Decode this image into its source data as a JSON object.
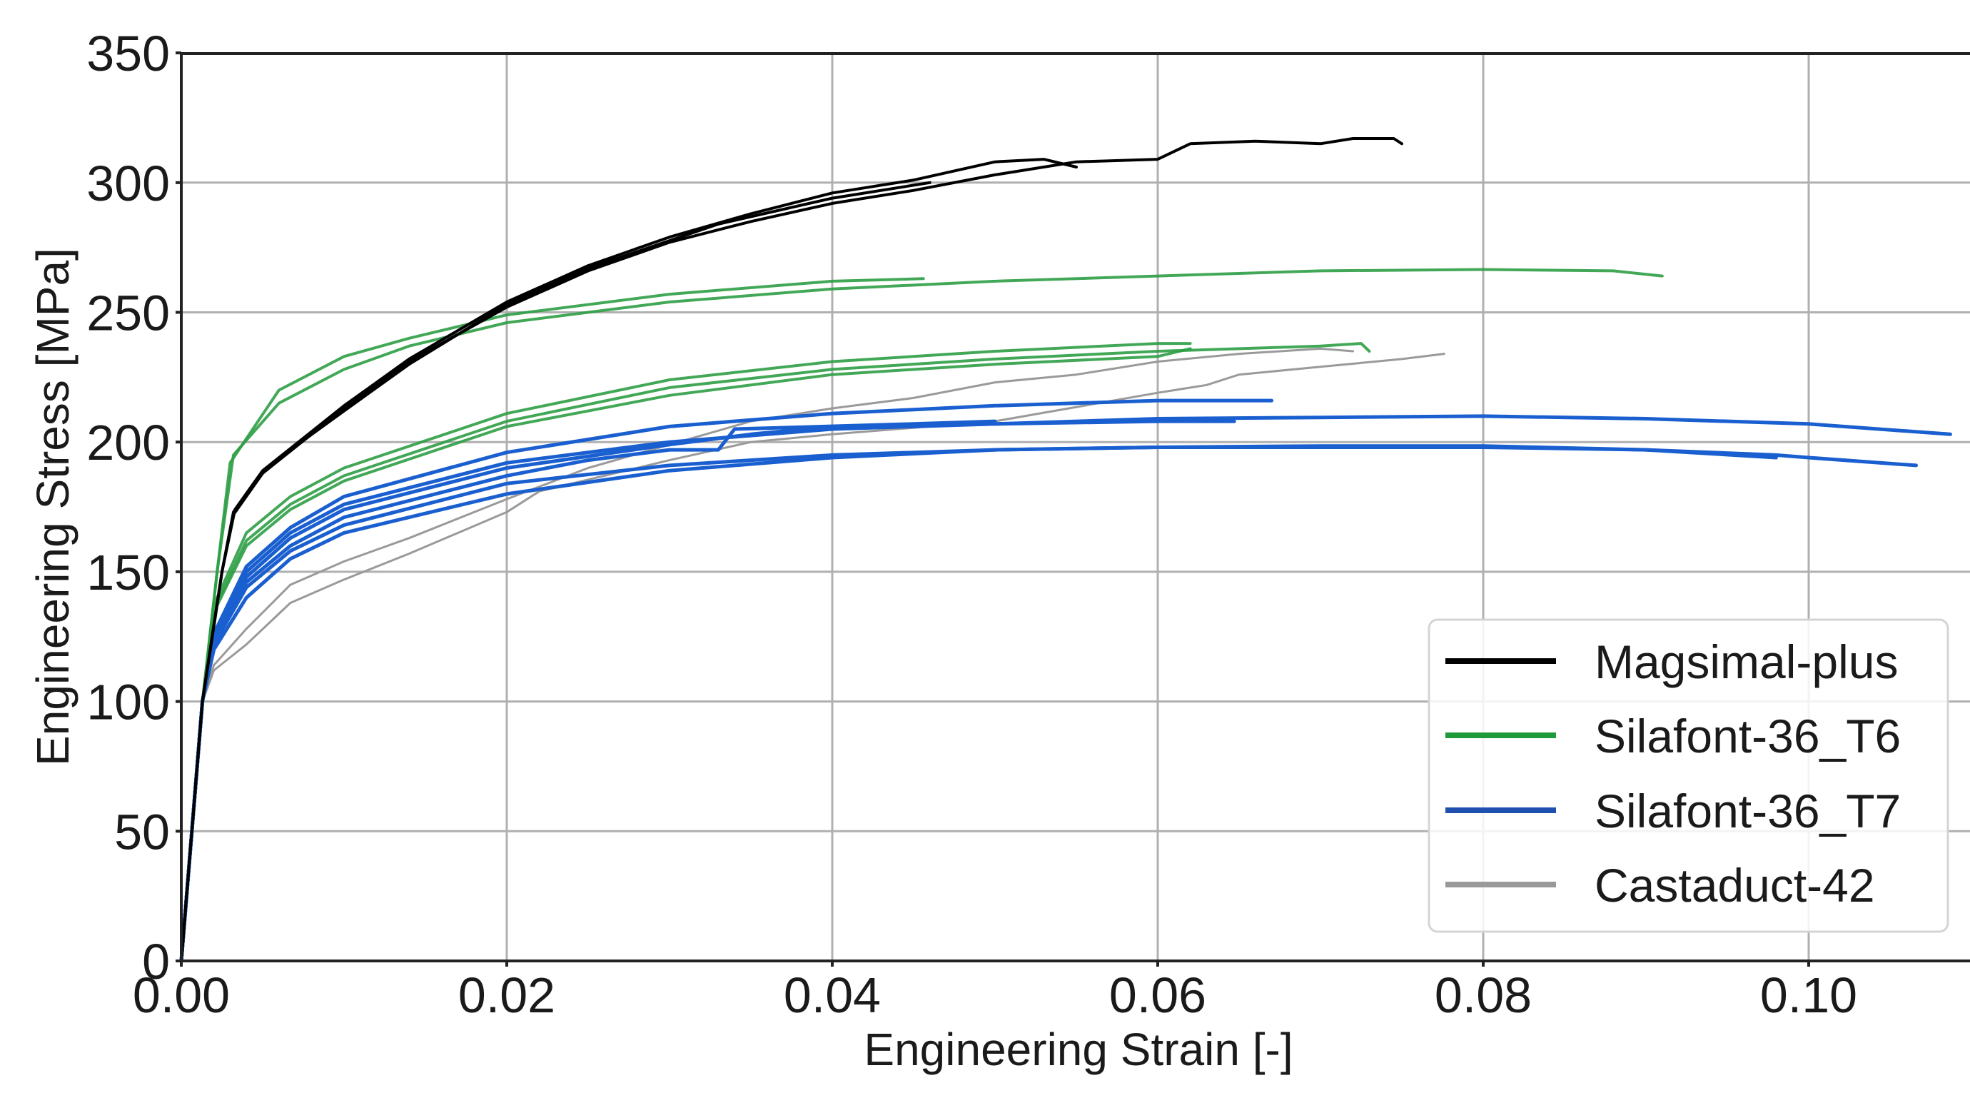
{
  "chart_data": {
    "type": "line",
    "title": "",
    "xlabel": "Engineering Strain [-]",
    "ylabel": "Engineering Stress [MPa]",
    "xlim": [
      0.0,
      0.11
    ],
    "ylim": [
      0,
      350
    ],
    "xticks": [
      0.0,
      0.02,
      0.04,
      0.06,
      0.08,
      0.1
    ],
    "xtick_labels": [
      "0.00",
      "0.02",
      "0.04",
      "0.06",
      "0.08",
      "0.10"
    ],
    "yticks": [
      0,
      50,
      100,
      150,
      200,
      250,
      300,
      350
    ],
    "ytick_labels": [
      "0",
      "50",
      "100",
      "150",
      "200",
      "250",
      "300",
      "350"
    ],
    "grid": true,
    "legend_position": "lower right",
    "series": [
      {
        "name": "Magsimal-plus",
        "color": "#000000",
        "curves": [
          [
            [
              0,
              0
            ],
            [
              0.0013,
              100
            ],
            [
              0.0025,
              150
            ],
            [
              0.0032,
              172
            ],
            [
              0.005,
              188
            ],
            [
              0.0067,
              197
            ],
            [
              0.01,
              212
            ],
            [
              0.014,
              230
            ],
            [
              0.02,
              253
            ],
            [
              0.025,
              267
            ],
            [
              0.0283,
              274
            ],
            [
              0.033,
              284
            ],
            [
              0.04,
              294
            ],
            [
              0.046,
              300
            ]
          ],
          [
            [
              0,
              0
            ],
            [
              0.0013,
              100
            ],
            [
              0.0025,
              150
            ],
            [
              0.0033,
              174
            ],
            [
              0.005,
              189
            ],
            [
              0.01,
              214
            ],
            [
              0.014,
              232
            ],
            [
              0.02,
              254
            ],
            [
              0.025,
              268
            ],
            [
              0.03,
              279
            ],
            [
              0.035,
              288
            ],
            [
              0.04,
              296
            ],
            [
              0.045,
              301
            ],
            [
              0.05,
              308
            ],
            [
              0.053,
              309
            ],
            [
              0.055,
              306
            ]
          ],
          [
            [
              0,
              0
            ],
            [
              0.0013,
              100
            ],
            [
              0.0025,
              150
            ],
            [
              0.0032,
              173
            ],
            [
              0.005,
              188
            ],
            [
              0.01,
              213
            ],
            [
              0.014,
              231
            ],
            [
              0.02,
              252
            ],
            [
              0.025,
              266
            ],
            [
              0.03,
              277
            ],
            [
              0.035,
              285
            ],
            [
              0.04,
              292
            ],
            [
              0.045,
              297
            ],
            [
              0.05,
              303
            ],
            [
              0.055,
              308
            ],
            [
              0.06,
              309
            ],
            [
              0.062,
              315
            ],
            [
              0.066,
              316
            ],
            [
              0.07,
              315
            ],
            [
              0.072,
              317
            ],
            [
              0.0745,
              317
            ],
            [
              0.075,
              315
            ]
          ]
        ]
      },
      {
        "name": "Silafont-36_T6",
        "color": "#2e9e45",
        "curves": [
          [
            [
              0,
              0
            ],
            [
              0.0013,
              100
            ],
            [
              0.0022,
              150
            ],
            [
              0.0032,
              195
            ],
            [
              0.006,
              215
            ],
            [
              0.01,
              228
            ],
            [
              0.014,
              237
            ],
            [
              0.02,
              246
            ],
            [
              0.03,
              254
            ],
            [
              0.04,
              259
            ],
            [
              0.05,
              262
            ],
            [
              0.06,
              264
            ],
            [
              0.07,
              266
            ],
            [
              0.08,
              266.5
            ],
            [
              0.088,
              266
            ],
            [
              0.091,
              264
            ]
          ],
          [
            [
              0,
              0
            ],
            [
              0.0013,
              100
            ],
            [
              0.0022,
              150
            ],
            [
              0.003,
              192
            ],
            [
              0.006,
              220
            ],
            [
              0.01,
              233
            ],
            [
              0.014,
              240
            ],
            [
              0.02,
              249
            ],
            [
              0.03,
              257
            ],
            [
              0.04,
              262
            ],
            [
              0.0456,
              263
            ]
          ],
          [
            [
              0,
              0
            ],
            [
              0.0013,
              100
            ],
            [
              0.0022,
              140
            ],
            [
              0.004,
              165
            ],
            [
              0.0067,
              179
            ],
            [
              0.01,
              190
            ],
            [
              0.02,
              211
            ],
            [
              0.03,
              224
            ],
            [
              0.04,
              231
            ],
            [
              0.05,
              235
            ],
            [
              0.06,
              238
            ],
            [
              0.062,
              238
            ]
          ],
          [
            [
              0,
              0
            ],
            [
              0.0013,
              100
            ],
            [
              0.0022,
              138
            ],
            [
              0.004,
              162
            ],
            [
              0.0067,
              176
            ],
            [
              0.01,
              187
            ],
            [
              0.02,
              208
            ],
            [
              0.03,
              221
            ],
            [
              0.04,
              228
            ],
            [
              0.05,
              232
            ],
            [
              0.06,
              235
            ],
            [
              0.07,
              237
            ],
            [
              0.0725,
              238
            ],
            [
              0.073,
              235
            ]
          ],
          [
            [
              0,
              0
            ],
            [
              0.0013,
              100
            ],
            [
              0.0022,
              137
            ],
            [
              0.004,
              160
            ],
            [
              0.0067,
              174
            ],
            [
              0.01,
              185
            ],
            [
              0.02,
              206
            ],
            [
              0.03,
              218
            ],
            [
              0.04,
              226
            ],
            [
              0.05,
              230
            ],
            [
              0.06,
              233
            ],
            [
              0.062,
              236
            ]
          ]
        ]
      },
      {
        "name": "Silafont-36_T7",
        "color": "#1a5fd0",
        "curves": [
          [
            [
              0,
              0
            ],
            [
              0.0013,
              100
            ],
            [
              0.002,
              125
            ],
            [
              0.004,
              150
            ],
            [
              0.0067,
              165
            ],
            [
              0.01,
              176
            ],
            [
              0.02,
              192
            ],
            [
              0.03,
              200
            ],
            [
              0.04,
              205
            ],
            [
              0.05,
              207
            ],
            [
              0.06,
              209
            ],
            [
              0.07,
              209.5
            ],
            [
              0.08,
              210
            ],
            [
              0.09,
              209
            ],
            [
              0.1,
              207
            ],
            [
              0.1087,
              203
            ]
          ],
          [
            [
              0,
              0
            ],
            [
              0.0013,
              100
            ],
            [
              0.002,
              120
            ],
            [
              0.004,
              140
            ],
            [
              0.0067,
              155
            ],
            [
              0.01,
              165
            ],
            [
              0.02,
              180
            ],
            [
              0.03,
              189
            ],
            [
              0.04,
              194
            ],
            [
              0.05,
              197
            ],
            [
              0.06,
              198
            ],
            [
              0.07,
              198.5
            ],
            [
              0.08,
              198.5
            ],
            [
              0.09,
              197
            ],
            [
              0.098,
              195
            ],
            [
              0.1,
              194
            ],
            [
              0.1066,
              191
            ]
          ],
          [
            [
              0,
              0
            ],
            [
              0.0013,
              100
            ],
            [
              0.002,
              125
            ],
            [
              0.004,
              148
            ],
            [
              0.0067,
              163
            ],
            [
              0.01,
              174
            ],
            [
              0.02,
              190
            ],
            [
              0.03,
              199
            ],
            [
              0.035,
              203
            ],
            [
              0.04,
              206
            ],
            [
              0.05,
              207
            ],
            [
              0.06,
              208
            ],
            [
              0.0647,
              208
            ]
          ],
          [
            [
              0,
              0
            ],
            [
              0.0013,
              100
            ],
            [
              0.002,
              126
            ],
            [
              0.004,
              152
            ],
            [
              0.0067,
              167
            ],
            [
              0.01,
              179
            ],
            [
              0.02,
              196
            ],
            [
              0.03,
              206
            ],
            [
              0.04,
              211
            ],
            [
              0.05,
              214
            ],
            [
              0.06,
              216
            ],
            [
              0.067,
              216
            ]
          ],
          [
            [
              0,
              0
            ],
            [
              0.0013,
              100
            ],
            [
              0.002,
              122
            ],
            [
              0.004,
              144
            ],
            [
              0.0067,
              158
            ],
            [
              0.01,
              168
            ],
            [
              0.02,
              184
            ],
            [
              0.03,
              191
            ],
            [
              0.04,
              195
            ],
            [
              0.05,
              197
            ],
            [
              0.06,
              198
            ],
            [
              0.07,
              198
            ],
            [
              0.08,
              198
            ],
            [
              0.09,
              197
            ],
            [
              0.098,
              194
            ]
          ],
          [
            [
              0,
              0
            ],
            [
              0.0013,
              100
            ],
            [
              0.002,
              124
            ],
            [
              0.004,
              146
            ],
            [
              0.0067,
              160
            ],
            [
              0.01,
              171
            ],
            [
              0.02,
              187
            ],
            [
              0.025,
              193
            ],
            [
              0.03,
              197
            ],
            [
              0.033,
              197
            ],
            [
              0.034,
              205
            ],
            [
              0.045,
              207
            ],
            [
              0.05,
              208
            ]
          ]
        ]
      },
      {
        "name": "Castaduct-42",
        "color": "#9a9a9a",
        "curves": [
          [
            [
              0,
              0
            ],
            [
              0.0013,
              100
            ],
            [
              0.002,
              112
            ],
            [
              0.004,
              122
            ],
            [
              0.0067,
              138
            ],
            [
              0.01,
              147
            ],
            [
              0.014,
              157
            ],
            [
              0.02,
              173
            ],
            [
              0.022,
              181
            ],
            [
              0.03,
              193
            ],
            [
              0.035,
              200
            ],
            [
              0.04,
              203
            ],
            [
              0.05,
              208
            ],
            [
              0.06,
              219
            ],
            [
              0.063,
              222
            ],
            [
              0.065,
              226
            ],
            [
              0.07,
              229
            ],
            [
              0.075,
              232
            ],
            [
              0.0776,
              234
            ]
          ],
          [
            [
              0,
              0
            ],
            [
              0.0013,
              100
            ],
            [
              0.002,
              114
            ],
            [
              0.004,
              128
            ],
            [
              0.0067,
              145
            ],
            [
              0.01,
              154
            ],
            [
              0.014,
              163
            ],
            [
              0.02,
              178
            ],
            [
              0.025,
              190
            ],
            [
              0.03,
              199
            ],
            [
              0.035,
              208
            ],
            [
              0.04,
              213
            ],
            [
              0.045,
              217
            ],
            [
              0.05,
              223
            ],
            [
              0.055,
              226
            ],
            [
              0.06,
              231
            ],
            [
              0.065,
              234
            ],
            [
              0.07,
              236
            ],
            [
              0.072,
              235
            ]
          ]
        ]
      }
    ]
  },
  "legend": {
    "items": [
      {
        "label": "Magsimal-plus",
        "color": "#000000"
      },
      {
        "label": "Silafont-36_T6",
        "color": "#1f9a3a"
      },
      {
        "label": "Silafont-36_T7",
        "color": "#1f4faf"
      },
      {
        "label": "Castaduct-42",
        "color": "#999999"
      }
    ]
  },
  "axes": {
    "xlabel": "Engineering Strain [-]",
    "ylabel": "Engineering Stress [MPa]"
  }
}
